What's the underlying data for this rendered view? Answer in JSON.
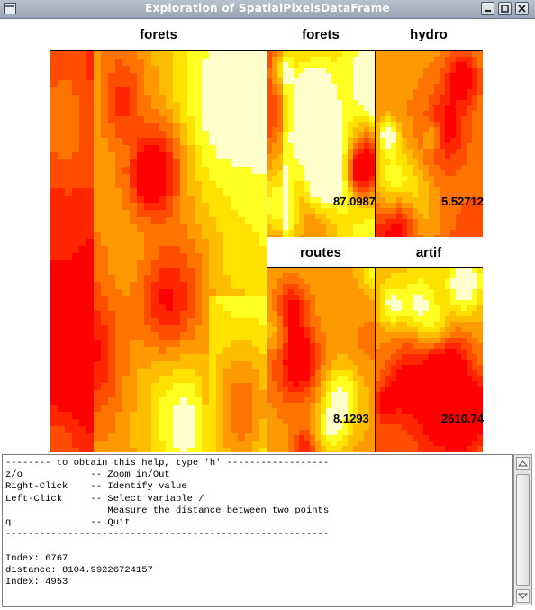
{
  "window": {
    "title": "Exploration of SpatialPixelsDataFrame",
    "buttons": [
      "minimize-icon",
      "maximize-icon",
      "close-icon"
    ]
  },
  "panels": [
    {
      "name": "forets",
      "value": ""
    },
    {
      "name": "forets",
      "value": "87.0987"
    },
    {
      "name": "hydro",
      "value": "5.52712"
    },
    {
      "name": "routes",
      "value": "8.1293"
    },
    {
      "name": "artif",
      "value": "2610.74"
    }
  ],
  "colors": {
    "heat_low": "#ff0000",
    "heat_mid": "#ff9900",
    "heat_high": "#ffff00",
    "heat_top": "#ffffcc",
    "panel_title_bg": "#ffffff"
  },
  "console": {
    "lines": [
      "-------- to obtain this help, type 'h' ------------------",
      "z/o            -- Zoom in/Out",
      "Right-Click    -- Identify value",
      "Left-Click     -- Select variable /",
      "                  Measure the distance between two points",
      "q              -- Quit",
      "---------------------------------------------------------",
      "",
      "Index: 6767",
      "distance: 8104.99226724157",
      "Index: 4953"
    ]
  }
}
